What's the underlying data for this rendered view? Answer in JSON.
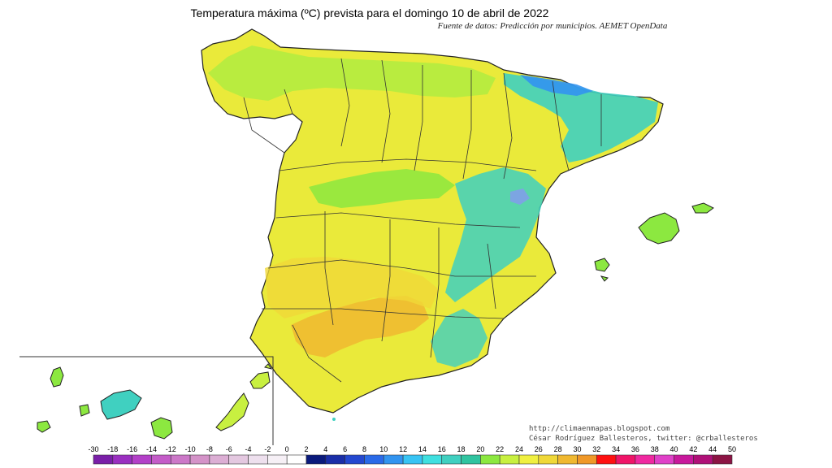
{
  "map": {
    "title": "Temperatura máxima (ºC) prevista para el domingo 10 de abril de 2022",
    "subtitle": "Fuente de datos: Predicción por municipios. AEMET OpenData",
    "credits": {
      "url": "http://climaenmapas.blogspot.com",
      "author": "César Rodríguez Ballesteros, twitter: @crballesteros"
    },
    "regions": [
      "Península",
      "Baleares",
      "Canarias"
    ]
  },
  "legend": {
    "ticks": [
      "-30",
      "-18",
      "-16",
      "-14",
      "-12",
      "-10",
      "-8",
      "-6",
      "-4",
      "-2",
      "0",
      "2",
      "4",
      "6",
      "8",
      "10",
      "12",
      "14",
      "16",
      "18",
      "20",
      "22",
      "24",
      "26",
      "28",
      "30",
      "32",
      "34",
      "36",
      "38",
      "40",
      "42",
      "44",
      "50"
    ],
    "colors": [
      "#7a1fa8",
      "#9a2fc0",
      "#b340c8",
      "#c45cc8",
      "#cc78c8",
      "#d493c8",
      "#dcaed4",
      "#e4c8e0",
      "#eee0ee",
      "#f6f0f6",
      "#ffffff",
      "#0a1a7c",
      "#1a2ea8",
      "#2448d0",
      "#2a6ae8",
      "#3294f0",
      "#38c4f4",
      "#40e0e0",
      "#40d0c0",
      "#30c4a0",
      "#8ce840",
      "#c8f040",
      "#f0f040",
      "#f0d838",
      "#f0b830",
      "#f09828",
      "#ff1010",
      "#f01468",
      "#f028a0",
      "#e040c8",
      "#c8189c",
      "#b01078",
      "#8c1444"
    ]
  },
  "colors": {
    "high": "#f0b830",
    "warm": "#f0d838",
    "mild": "#f0f040",
    "green": "#c8f040",
    "cool": "#8ce840",
    "cold": "#40d0c0",
    "coldest": "#3294f0"
  }
}
